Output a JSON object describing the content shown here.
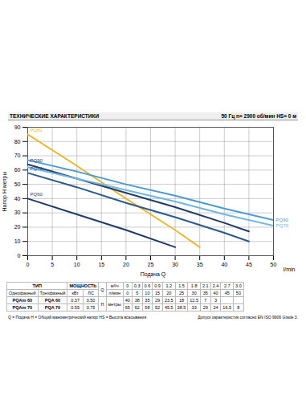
{
  "chart_data": {
    "type": "line",
    "title": "ТЕХНИЧЕСКИЕ ХАРАКТЕРИСТИКИ",
    "subtitle": "50 Гц  n= 2900 об/мин  HS= 0 м",
    "x_label": "Подача Q",
    "x_unit_label": "l/min",
    "y_label": "Напор H метры",
    "xlim": [
      0,
      50
    ],
    "xticks": [
      0,
      5,
      10,
      15,
      20,
      25,
      30,
      35,
      40,
      45,
      50
    ],
    "ylim": [
      0,
      90
    ],
    "yticks": [
      0,
      10,
      20,
      30,
      40,
      50,
      60,
      70,
      80,
      90
    ],
    "grid": true,
    "series": [
      {
        "name": "PQ81",
        "color": "#e8b830",
        "x": [
          0,
          10,
          20,
          30,
          35
        ],
        "values": [
          85,
          63,
          40,
          18,
          6
        ]
      },
      {
        "name": "PQ90",
        "color": "#1f3a68",
        "x": [
          0,
          10,
          20,
          30,
          40,
          45
        ],
        "values": [
          64,
          54,
          44,
          34,
          23,
          17
        ]
      },
      {
        "name": "PQ70",
        "color": "#2a5a8a",
        "x": [
          0,
          10,
          20,
          30,
          40,
          45
        ],
        "values": [
          58,
          48,
          37,
          27,
          16,
          10
        ]
      },
      {
        "name": "PQ90",
        "color": "#4a9ad4",
        "x": [
          0,
          10,
          20,
          30,
          40,
          50
        ],
        "values": [
          67,
          59,
          50,
          42,
          33,
          25
        ]
      },
      {
        "name": "PQ70",
        "color": "#6fb6e0",
        "x": [
          0,
          10,
          20,
          30,
          40,
          50
        ],
        "values": [
          62,
          54,
          46,
          38,
          29,
          21
        ]
      },
      {
        "name": "PQ60",
        "color": "#1f3a68",
        "x": [
          0,
          10,
          20,
          30
        ],
        "values": [
          40,
          29,
          18,
          6
        ]
      }
    ]
  },
  "table": {
    "type_header": "ТИП",
    "power_header": "МОЩНОСТЬ",
    "phase_headers": [
      "Однофазный",
      "Трехфазный"
    ],
    "power_units": [
      "кВт",
      "ЛС"
    ],
    "q_label": "Q",
    "q_units": [
      "м³/ч",
      "л/мин"
    ],
    "q_values": [
      [
        "0",
        "0.3",
        "0.6",
        "0.9",
        "1.2",
        "1.5",
        "1.8",
        "2.1",
        "2.4",
        "2.7",
        "3.0"
      ],
      [
        "0",
        "5",
        "10",
        "15",
        "20",
        "25",
        "30",
        "35",
        "40",
        "45",
        "50"
      ]
    ],
    "h_label": "H",
    "h_unit": "метры",
    "rows": [
      {
        "single": "PQAm 60",
        "three": "PQA 60",
        "kw": "0.37",
        "hp": "0.50",
        "h": [
          "40",
          "38",
          "35",
          "29",
          "23.5",
          "18",
          "12.5",
          "7",
          "3",
          null,
          null
        ]
      },
      {
        "single": "PQAm 70",
        "three": "PQA 70",
        "kw": "0.55",
        "hp": "0.75",
        "h": [
          "65",
          "62",
          "58",
          "52",
          "45.5",
          "38.5",
          "33",
          "29",
          "24",
          "16.5",
          "8"
        ]
      }
    ]
  },
  "footer": {
    "left": "Q = Подача  H = Общий манометрический напор  HS = Высота всасывания",
    "right": "Допуск характеристик согласно EN ISO 9906 Grade 3."
  }
}
